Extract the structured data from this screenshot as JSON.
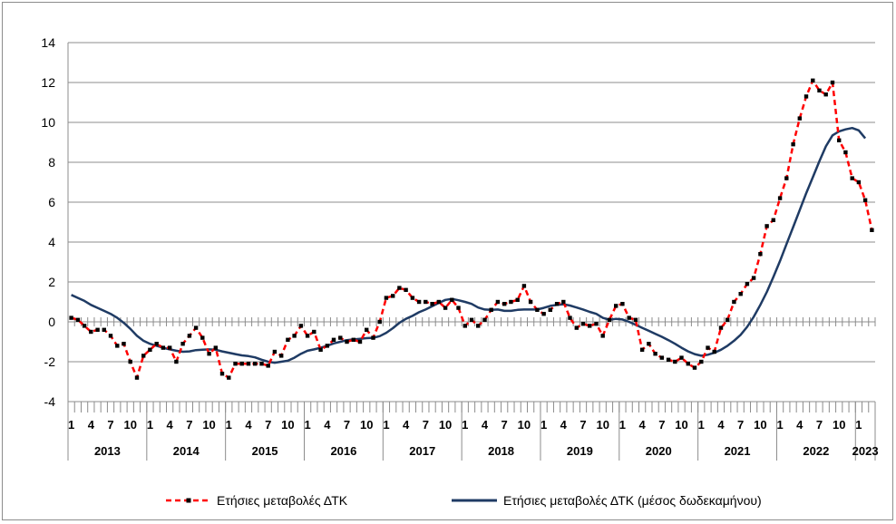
{
  "chart_data": {
    "type": "line",
    "title": "",
    "xlabel": "",
    "ylabel": "",
    "ylim": [
      -4,
      14
    ],
    "yticks": [
      -4,
      -2,
      0,
      2,
      4,
      6,
      8,
      10,
      12,
      14
    ],
    "grid": true,
    "legend_position": "bottom",
    "year_labels": [
      "2013",
      "2014",
      "2015",
      "2016",
      "2017",
      "2018",
      "2019",
      "2020",
      "2021",
      "2022",
      "2023"
    ],
    "month_tick_labels": [
      "1",
      "4",
      "7",
      "10"
    ],
    "last_year_tick_labels": [
      "1"
    ],
    "series": [
      {
        "name": "Ετήσιες μεταβολές ΔΤΚ",
        "color": "#ff0000",
        "marker_color": "#000000",
        "style": "dashed-with-markers",
        "values": [
          0.2,
          0.1,
          -0.2,
          -0.5,
          -0.4,
          -0.4,
          -0.7,
          -1.2,
          -1.1,
          -2.0,
          -2.8,
          -1.7,
          -1.4,
          -1.1,
          -1.3,
          -1.3,
          -2.0,
          -1.1,
          -0.7,
          -0.3,
          -0.8,
          -1.6,
          -1.3,
          -2.6,
          -2.8,
          -2.1,
          -2.1,
          -2.1,
          -2.1,
          -2.1,
          -2.2,
          -1.5,
          -1.7,
          -0.9,
          -0.7,
          -0.2,
          -0.7,
          -0.5,
          -1.4,
          -1.2,
          -0.9,
          -0.8,
          -1.0,
          -0.9,
          -1.0,
          -0.4,
          -0.8,
          0.0,
          1.2,
          1.3,
          1.7,
          1.6,
          1.2,
          1.0,
          1.0,
          0.9,
          1.0,
          0.7,
          1.1,
          0.7,
          -0.2,
          0.1,
          -0.2,
          0.1,
          0.6,
          1.0,
          0.9,
          1.0,
          1.1,
          1.8,
          1.0,
          0.6,
          0.4,
          0.6,
          0.9,
          1.0,
          0.2,
          -0.3,
          -0.1,
          -0.2,
          -0.1,
          -0.7,
          0.1,
          0.8,
          0.9,
          0.2,
          0.1,
          -1.4,
          -1.1,
          -1.6,
          -1.8,
          -1.9,
          -2.0,
          -1.8,
          -2.1,
          -2.3,
          -2.0,
          -1.3,
          -1.5,
          -0.3,
          0.1,
          1.0,
          1.4,
          1.9,
          2.2,
          3.4,
          4.8,
          5.1,
          6.2,
          7.2,
          8.9,
          10.2,
          11.3,
          12.1,
          11.6,
          11.4,
          12.0,
          9.1,
          8.5,
          7.2,
          7.0,
          6.1,
          4.6
        ]
      },
      {
        "name": "Ετήσιες μεταβολές ΔΤΚ (μέσος δωδεκαμήνου)",
        "color": "#1f3b64",
        "style": "solid",
        "values": [
          1.35,
          1.2,
          1.05,
          0.85,
          0.7,
          0.55,
          0.4,
          0.2,
          -0.05,
          -0.35,
          -0.7,
          -0.95,
          -1.1,
          -1.2,
          -1.3,
          -1.38,
          -1.45,
          -1.5,
          -1.48,
          -1.42,
          -1.4,
          -1.38,
          -1.4,
          -1.48,
          -1.55,
          -1.62,
          -1.68,
          -1.72,
          -1.78,
          -1.9,
          -2.0,
          -2.05,
          -2.0,
          -1.95,
          -1.8,
          -1.6,
          -1.45,
          -1.38,
          -1.3,
          -1.2,
          -1.08,
          -1.0,
          -0.92,
          -0.88,
          -0.85,
          -0.82,
          -0.8,
          -0.72,
          -0.55,
          -0.32,
          -0.05,
          0.15,
          0.3,
          0.48,
          0.62,
          0.78,
          0.95,
          1.1,
          1.15,
          1.08,
          1.0,
          0.9,
          0.72,
          0.62,
          0.6,
          0.62,
          0.55,
          0.55,
          0.6,
          0.62,
          0.62,
          0.62,
          0.7,
          0.8,
          0.85,
          0.88,
          0.82,
          0.72,
          0.62,
          0.5,
          0.4,
          0.2,
          0.1,
          0.15,
          0.12,
          0.0,
          -0.15,
          -0.3,
          -0.45,
          -0.6,
          -0.75,
          -0.92,
          -1.1,
          -1.3,
          -1.48,
          -1.62,
          -1.7,
          -1.65,
          -1.55,
          -1.4,
          -1.2,
          -0.95,
          -0.65,
          -0.25,
          0.25,
          0.85,
          1.5,
          2.25,
          3.05,
          3.9,
          4.75,
          5.6,
          6.45,
          7.25,
          8.05,
          8.8,
          9.35,
          9.55,
          9.65,
          9.72,
          9.6,
          9.2
        ]
      }
    ]
  }
}
